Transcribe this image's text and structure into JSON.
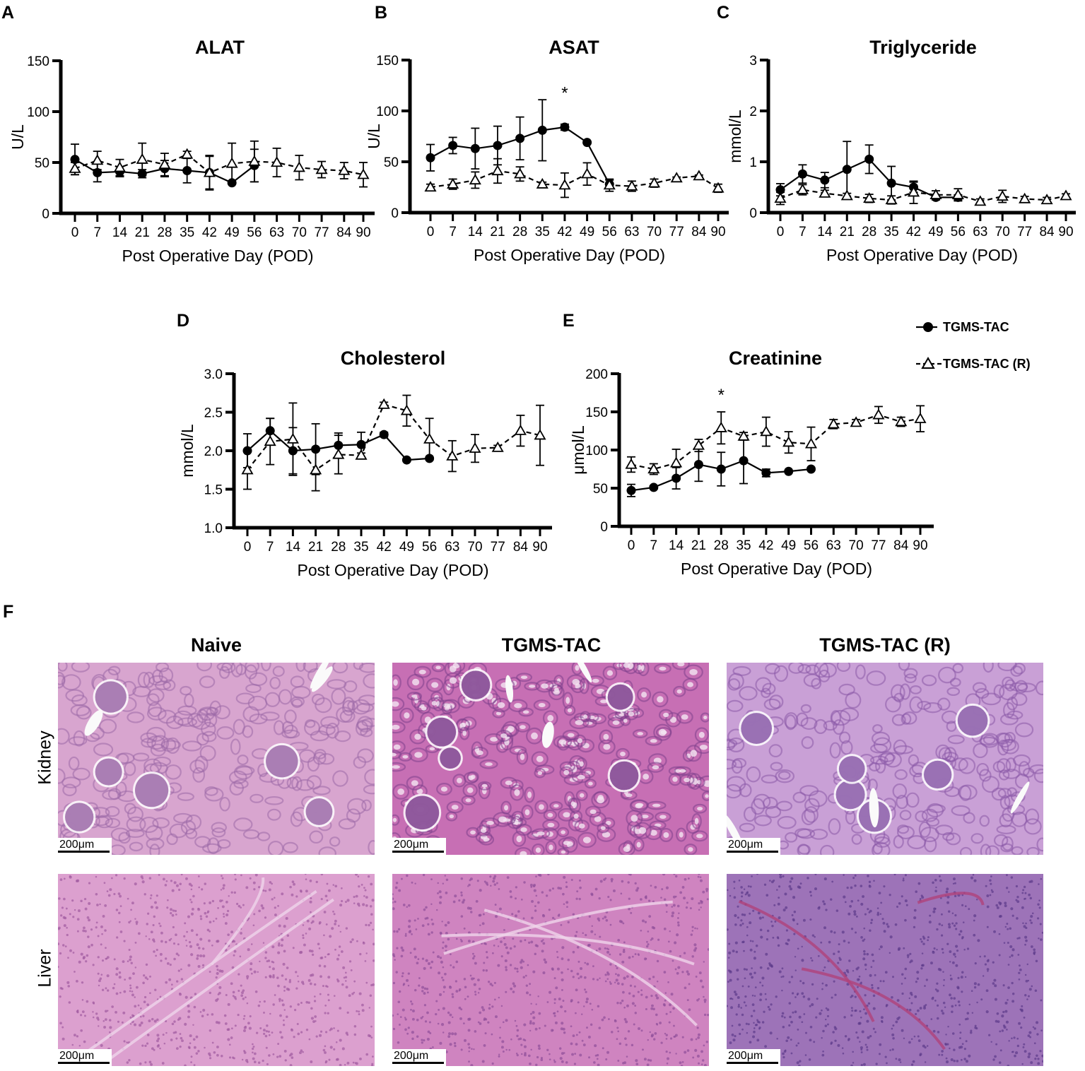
{
  "panel_letters": [
    "A",
    "B",
    "C",
    "D",
    "E",
    "F"
  ],
  "legend": {
    "items": [
      {
        "label": "TGMS-TAC",
        "marker": "filled-circle",
        "line": "solid"
      },
      {
        "label": "TGMS-TAC (R)",
        "marker": "open-triangle",
        "line": "dashed"
      }
    ]
  },
  "chart_data": [
    {
      "panel": "A",
      "type": "line",
      "title": "ALAT",
      "xlabel": "Post Operative Day (POD)",
      "ylabel": "U/L",
      "x": [
        0,
        7,
        14,
        21,
        28,
        35,
        42,
        49,
        56,
        63,
        70,
        77,
        84,
        90
      ],
      "ylim": [
        0,
        150
      ],
      "yticks": [
        0,
        50,
        100,
        150
      ],
      "ytick_labels": [
        "0",
        "50",
        "100",
        "150"
      ],
      "annotations": [],
      "series": [
        {
          "name": "TGMS-TAC",
          "style": "solid-filled-circle",
          "values": [
            53,
            40,
            41,
            39,
            44,
            42,
            40,
            30,
            47,
            null,
            null,
            null,
            null,
            null
          ],
          "errors": [
            15,
            9,
            5,
            4,
            8,
            12,
            17,
            0,
            16,
            null,
            null,
            null,
            null,
            null
          ]
        },
        {
          "name": "TGMS-TAC (R)",
          "style": "dashed-open-triangle",
          "values": [
            44,
            52,
            45,
            53,
            48,
            58,
            40,
            49,
            51,
            50,
            45,
            43,
            42,
            38
          ],
          "errors": [
            6,
            9,
            8,
            16,
            11,
            3,
            16,
            20,
            20,
            14,
            12,
            8,
            8,
            12
          ]
        }
      ]
    },
    {
      "panel": "B",
      "type": "line",
      "title": "ASAT",
      "xlabel": "Post Operative Day (POD)",
      "ylabel": "U/L",
      "x": [
        0,
        7,
        14,
        21,
        28,
        35,
        42,
        49,
        56,
        63,
        70,
        77,
        84,
        90
      ],
      "ylim": [
        0,
        150
      ],
      "yticks": [
        0,
        50,
        100,
        150
      ],
      "ytick_labels": [
        "0",
        "50",
        "100",
        "150"
      ],
      "annotations": [
        {
          "text": "*",
          "x": 42,
          "y": 122
        }
      ],
      "series": [
        {
          "name": "TGMS-TAC",
          "style": "solid-filled-circle",
          "values": [
            54,
            66,
            63,
            66,
            73,
            81,
            84,
            69,
            28,
            null,
            null,
            null,
            null,
            null
          ],
          "errors": [
            13,
            8,
            20,
            19,
            21,
            30,
            3,
            0,
            4,
            null,
            null,
            null,
            null,
            null
          ]
        },
        {
          "name": "TGMS-TAC (R)",
          "style": "dashed-open-triangle",
          "values": [
            25,
            28,
            32,
            41,
            38,
            28,
            27,
            38,
            27,
            26,
            29,
            34,
            36,
            24
          ],
          "errors": [
            3,
            5,
            8,
            12,
            7,
            2,
            12,
            11,
            6,
            5,
            4,
            1,
            1,
            4
          ]
        }
      ]
    },
    {
      "panel": "C",
      "type": "line",
      "title": "Triglyceride",
      "xlabel": "Post Operative Day (POD)",
      "ylabel": "mmol/L",
      "x": [
        0,
        7,
        14,
        21,
        28,
        35,
        42,
        49,
        56,
        63,
        70,
        77,
        84,
        90
      ],
      "ylim": [
        0,
        3
      ],
      "yticks": [
        0,
        1,
        2,
        3
      ],
      "ytick_labels": [
        "0",
        "1",
        "2",
        "3"
      ],
      "annotations": [],
      "series": [
        {
          "name": "TGMS-TAC",
          "style": "solid-filled-circle",
          "values": [
            0.45,
            0.76,
            0.64,
            0.85,
            1.05,
            0.58,
            0.5,
            0.3,
            0.3,
            null,
            null,
            null,
            null,
            null
          ],
          "errors": [
            0.12,
            0.18,
            0.15,
            0.55,
            0.28,
            0.33,
            0.1,
            0.05,
            0.05,
            null,
            null,
            null,
            null,
            null
          ]
        },
        {
          "name": "TGMS-TAC (R)",
          "style": "dashed-open-triangle",
          "values": [
            0.28,
            0.45,
            0.38,
            0.33,
            0.28,
            0.25,
            0.4,
            0.35,
            0.35,
            0.22,
            0.32,
            0.27,
            0.25,
            0.33
          ],
          "errors": [
            0.12,
            0.1,
            0.06,
            0.05,
            0.08,
            0.08,
            0.22,
            0.08,
            0.12,
            0.05,
            0.12,
            0.05,
            0.05,
            0.04
          ]
        }
      ]
    },
    {
      "panel": "D",
      "type": "line",
      "title": "Cholesterol",
      "xlabel": "Post Operative Day (POD)",
      "ylabel": "mmol/L",
      "x": [
        0,
        7,
        14,
        21,
        28,
        35,
        42,
        49,
        56,
        63,
        70,
        77,
        84,
        90
      ],
      "ylim": [
        1.0,
        3.0
      ],
      "yticks": [
        1.0,
        1.5,
        2.0,
        2.5,
        3.0
      ],
      "ytick_labels": [
        "1.0",
        "1.5",
        "2.0",
        "2.5",
        "3.0"
      ],
      "annotations": [],
      "series": [
        {
          "name": "TGMS-TAC",
          "style": "solid-filled-circle",
          "values": [
            2.0,
            2.26,
            2.0,
            2.02,
            2.07,
            2.08,
            2.21,
            1.88,
            1.9,
            null,
            null,
            null,
            null,
            null
          ],
          "errors": [
            0.22,
            0.16,
            0.3,
            0.33,
            0.16,
            0.16,
            0.03,
            0,
            0,
            null,
            null,
            null,
            null,
            null
          ]
        },
        {
          "name": "TGMS-TAC (R)",
          "style": "dashed-open-triangle",
          "values": [
            1.75,
            2.12,
            2.15,
            1.75,
            1.95,
            1.94,
            2.6,
            2.52,
            2.15,
            1.93,
            2.03,
            2.04,
            2.26,
            2.2
          ],
          "errors": [
            0.25,
            0.3,
            0.47,
            0.27,
            0.25,
            0.03,
            0.03,
            0.2,
            0.27,
            0.2,
            0.18,
            0.03,
            0.2,
            0.39
          ]
        }
      ]
    },
    {
      "panel": "E",
      "type": "line",
      "title": "Creatinine",
      "xlabel": "Post Operative Day (POD)",
      "ylabel": "μmol/L",
      "x": [
        0,
        7,
        14,
        21,
        28,
        35,
        42,
        49,
        56,
        63,
        70,
        77,
        84,
        90
      ],
      "ylim": [
        0,
        200
      ],
      "yticks": [
        0,
        50,
        100,
        150,
        200
      ],
      "ytick_labels": [
        "0",
        "50",
        "100",
        "150",
        "200"
      ],
      "annotations": [
        {
          "text": "*",
          "x": 28,
          "y": 178
        }
      ],
      "series": [
        {
          "name": "TGMS-TAC",
          "style": "solid-filled-circle",
          "values": [
            47,
            51,
            63,
            81,
            75,
            86,
            70,
            72,
            75,
            null,
            null,
            null,
            null,
            null
          ],
          "errors": [
            8,
            2,
            14,
            22,
            22,
            30,
            5,
            0,
            0,
            null,
            null,
            null,
            null,
            null
          ]
        },
        {
          "name": "TGMS-TAC (R)",
          "style": "dashed-open-triangle",
          "values": [
            81,
            75,
            83,
            106,
            129,
            118,
            124,
            110,
            108,
            134,
            136,
            146,
            137,
            141
          ],
          "errors": [
            10,
            7,
            18,
            8,
            21,
            5,
            19,
            14,
            22,
            6,
            4,
            11,
            6,
            17
          ]
        }
      ]
    }
  ],
  "histology": {
    "columns": [
      "Naive",
      "TGMS-TAC",
      "TGMS-TAC (R)"
    ],
    "rows": [
      "Kidney",
      "Liver"
    ],
    "scale_bar": "200μm"
  }
}
